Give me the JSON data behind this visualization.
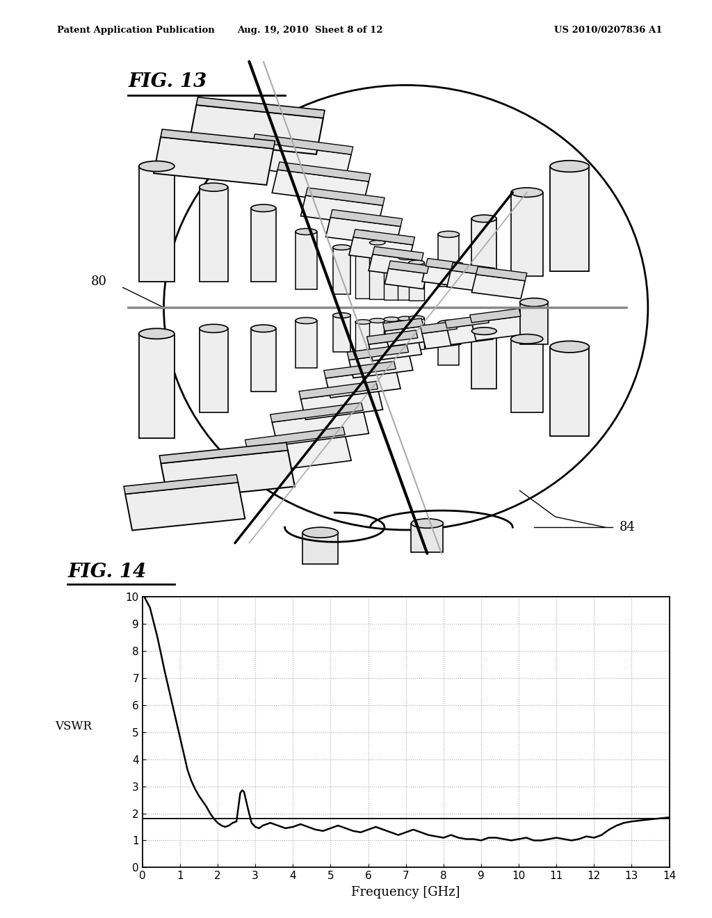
{
  "header_left": "Patent Application Publication",
  "header_mid": "Aug. 19, 2010  Sheet 8 of 12",
  "header_right": "US 2010/0207836 A1",
  "fig13_title": "FIG. 13",
  "fig14_title": "FIG. 14",
  "label_80": "80",
  "label_84": "84",
  "ylabel": "VSWR",
  "xlabel": "Frequency [GHz]",
  "xlim": [
    0,
    14
  ],
  "ylim": [
    0,
    10
  ],
  "xticks": [
    0,
    1,
    2,
    3,
    4,
    5,
    6,
    7,
    8,
    9,
    10,
    11,
    12,
    13,
    14
  ],
  "yticks": [
    0,
    1,
    2,
    3,
    4,
    5,
    6,
    7,
    8,
    9,
    10
  ],
  "hline_y": 1.8,
  "bg_color": "#ffffff",
  "line_color": "#000000",
  "grid_color": "#aaaaaa",
  "vswr_data_x": [
    0.05,
    0.2,
    0.4,
    0.6,
    0.8,
    1.0,
    1.1,
    1.2,
    1.3,
    1.4,
    1.5,
    1.6,
    1.7,
    1.8,
    1.9,
    2.0,
    2.1,
    2.2,
    2.3,
    2.4,
    2.5,
    2.6,
    2.65,
    2.7,
    2.8,
    2.9,
    3.0,
    3.1,
    3.2,
    3.4,
    3.6,
    3.8,
    4.0,
    4.2,
    4.4,
    4.6,
    4.8,
    5.0,
    5.2,
    5.4,
    5.6,
    5.8,
    6.0,
    6.2,
    6.4,
    6.6,
    6.8,
    7.0,
    7.2,
    7.4,
    7.6,
    7.8,
    8.0,
    8.2,
    8.4,
    8.6,
    8.8,
    9.0,
    9.2,
    9.4,
    9.6,
    9.8,
    10.0,
    10.2,
    10.4,
    10.6,
    10.8,
    11.0,
    11.2,
    11.4,
    11.6,
    11.8,
    12.0,
    12.2,
    12.4,
    12.6,
    12.8,
    13.0,
    13.5,
    14.0
  ],
  "vswr_data_y": [
    10.0,
    9.6,
    8.5,
    7.2,
    6.0,
    4.8,
    4.2,
    3.6,
    3.2,
    2.9,
    2.65,
    2.45,
    2.25,
    2.0,
    1.8,
    1.65,
    1.55,
    1.5,
    1.55,
    1.65,
    1.7,
    2.75,
    2.85,
    2.8,
    2.2,
    1.65,
    1.5,
    1.45,
    1.55,
    1.65,
    1.55,
    1.45,
    1.5,
    1.6,
    1.5,
    1.4,
    1.35,
    1.45,
    1.55,
    1.45,
    1.35,
    1.3,
    1.4,
    1.5,
    1.4,
    1.3,
    1.2,
    1.3,
    1.4,
    1.3,
    1.2,
    1.15,
    1.1,
    1.2,
    1.1,
    1.05,
    1.05,
    1.0,
    1.1,
    1.1,
    1.05,
    1.0,
    1.05,
    1.1,
    1.0,
    1.0,
    1.05,
    1.1,
    1.05,
    1.0,
    1.05,
    1.15,
    1.1,
    1.2,
    1.4,
    1.55,
    1.65,
    1.7,
    1.78,
    1.85
  ]
}
